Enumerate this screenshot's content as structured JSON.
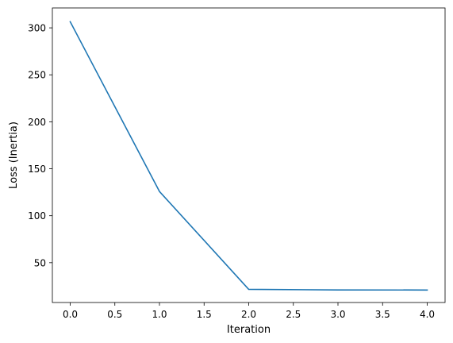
{
  "chart_data": {
    "type": "line",
    "title": "",
    "xlabel": "Iteration",
    "ylabel": "Loss (Inertia)",
    "x": [
      0,
      1,
      2,
      3,
      4
    ],
    "series": [
      {
        "values": [
          306.5,
          125.8,
          21.6,
          21.0,
          20.9
        ],
        "color": "#1f77b4"
      }
    ],
    "xlim": [
      -0.2,
      4.2
    ],
    "ylim": [
      7.6,
      321.2
    ],
    "xticks": [
      0.0,
      0.5,
      1.0,
      1.5,
      2.0,
      2.5,
      3.0,
      3.5,
      4.0
    ],
    "xtick_labels": [
      "0.0",
      "0.5",
      "1.0",
      "1.5",
      "2.0",
      "2.5",
      "3.0",
      "3.5",
      "4.0"
    ],
    "yticks": [
      50,
      100,
      150,
      200,
      250,
      300
    ],
    "ytick_labels": [
      "50",
      "100",
      "150",
      "200",
      "250",
      "300"
    ],
    "grid": false,
    "legend": false
  }
}
